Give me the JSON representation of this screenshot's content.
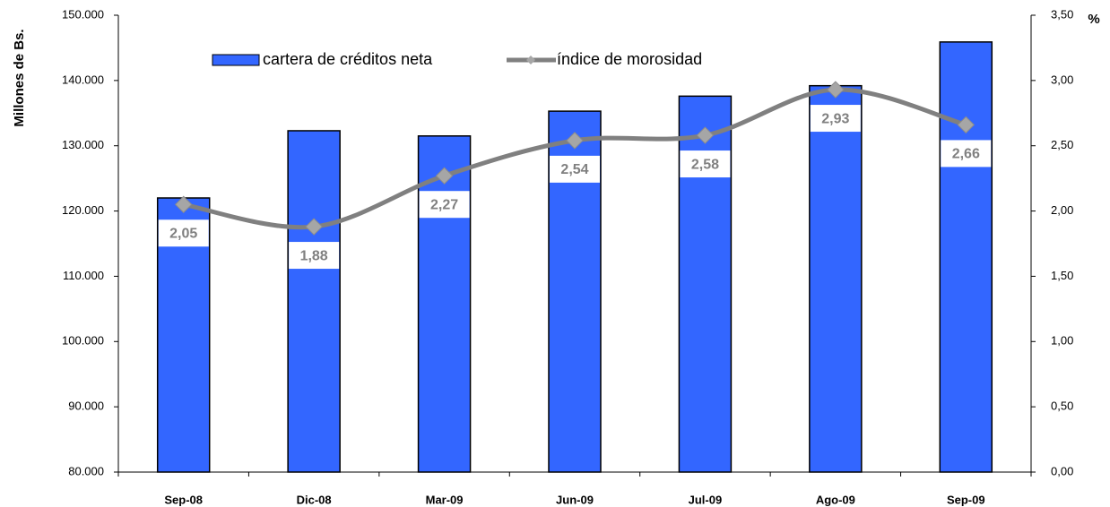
{
  "chart_data": {
    "type": "bar",
    "y_label": "Millones de Bs.",
    "y2_label": "%",
    "categories": [
      "Sep-08",
      "Dic-08",
      "Mar-09",
      "Jun-09",
      "Jul-09",
      "Ago-09",
      "Sep-09"
    ],
    "series": [
      {
        "name": "cartera de créditos neta",
        "type": "bar",
        "color": "#3366ff",
        "values": [
          122000,
          132300,
          131500,
          135300,
          137600,
          139200,
          145900
        ]
      },
      {
        "name": "índice de morosidad",
        "type": "line",
        "axis": "y2",
        "color": "#808080",
        "marker_color": "#a6a6a6",
        "values": [
          2.05,
          1.88,
          2.27,
          2.54,
          2.58,
          2.93,
          2.66
        ],
        "value_labels": [
          "2,05",
          "1,88",
          "2,27",
          "2,54",
          "2,58",
          "2,93",
          "2,66"
        ]
      }
    ],
    "ylim": [
      80000,
      150000
    ],
    "yticks": [
      {
        "value": 80000,
        "label": "80.000"
      },
      {
        "value": 90000,
        "label": "90.000"
      },
      {
        "value": 100000,
        "label": "100.000"
      },
      {
        "value": 110000,
        "label": "110.000"
      },
      {
        "value": 120000,
        "label": "120.000"
      },
      {
        "value": 130000,
        "label": "130.000"
      },
      {
        "value": 140000,
        "label": "140.000"
      },
      {
        "value": 150000,
        "label": "150.000"
      }
    ],
    "y2lim": [
      0,
      3.5
    ],
    "y2ticks": [
      {
        "value": 0,
        "label": "0,00"
      },
      {
        "value": 0.5,
        "label": "0,50"
      },
      {
        "value": 1,
        "label": "1,00"
      },
      {
        "value": 1.5,
        "label": "1,50"
      },
      {
        "value": 2,
        "label": "2,00"
      },
      {
        "value": 2.5,
        "label": "2,50"
      },
      {
        "value": 3,
        "label": "3,00"
      },
      {
        "value": 3.5,
        "label": "3,50"
      }
    ],
    "grid": false
  }
}
